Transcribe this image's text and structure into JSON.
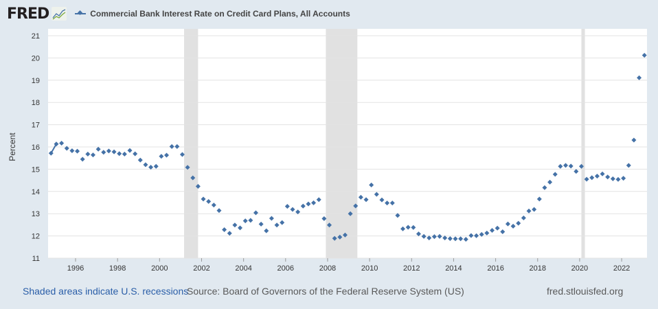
{
  "header": {
    "logo": "FRED",
    "title": "Commercial Bank Interest Rate on Credit Card Plans, All Accounts"
  },
  "footer": {
    "recession_note": "Shaded areas indicate U.S. recessions",
    "source": "Source: Board of Governors of the Federal Reserve System (US)",
    "site": "fred.stlouisfed.org"
  },
  "colors": {
    "series": "#4572a7",
    "recession": "#e1e1e1",
    "background": "#e1e9f0"
  },
  "chart_data": {
    "type": "scatter",
    "title": "Commercial Bank Interest Rate on Credit Card Plans, All Accounts",
    "xlabel": "",
    "ylabel": "Percent",
    "ylim": [
      11,
      21
    ],
    "yticks": [
      "11",
      "12",
      "13",
      "14",
      "15",
      "16",
      "17",
      "18",
      "19",
      "20",
      "21"
    ],
    "xticks": [
      "1996",
      "1998",
      "2000",
      "2002",
      "2004",
      "2006",
      "2008",
      "2010",
      "2012",
      "2014",
      "2016",
      "2018",
      "2020",
      "2022"
    ],
    "grid": true,
    "legend": "top-left",
    "recessions": [
      [
        "2001-03",
        "2001-11"
      ],
      [
        "2007-12",
        "2009-06"
      ],
      [
        "2020-02",
        "2020-04"
      ]
    ],
    "x": [
      "1994-11",
      "1995-02",
      "1995-05",
      "1995-08",
      "1995-11",
      "1996-02",
      "1996-05",
      "1996-08",
      "1996-11",
      "1997-02",
      "1997-05",
      "1997-08",
      "1997-11",
      "1998-02",
      "1998-05",
      "1998-08",
      "1998-11",
      "1999-02",
      "1999-05",
      "1999-08",
      "1999-11",
      "2000-02",
      "2000-05",
      "2000-08",
      "2000-11",
      "2001-02",
      "2001-05",
      "2001-08",
      "2001-11",
      "2002-02",
      "2002-05",
      "2002-08",
      "2002-11",
      "2003-02",
      "2003-05",
      "2003-08",
      "2003-11",
      "2004-02",
      "2004-05",
      "2004-08",
      "2004-11",
      "2005-02",
      "2005-05",
      "2005-08",
      "2005-11",
      "2006-02",
      "2006-05",
      "2006-08",
      "2006-11",
      "2007-02",
      "2007-05",
      "2007-08",
      "2007-11",
      "2008-02",
      "2008-05",
      "2008-08",
      "2008-11",
      "2009-02",
      "2009-05",
      "2009-08",
      "2009-11",
      "2010-02",
      "2010-05",
      "2010-08",
      "2010-11",
      "2011-02",
      "2011-05",
      "2011-08",
      "2011-11",
      "2012-02",
      "2012-05",
      "2012-08",
      "2012-11",
      "2013-02",
      "2013-05",
      "2013-08",
      "2013-11",
      "2014-02",
      "2014-05",
      "2014-08",
      "2014-11",
      "2015-02",
      "2015-05",
      "2015-08",
      "2015-11",
      "2016-02",
      "2016-05",
      "2016-08",
      "2016-11",
      "2017-02",
      "2017-05",
      "2017-08",
      "2017-11",
      "2018-02",
      "2018-05",
      "2018-08",
      "2018-11",
      "2019-02",
      "2019-05",
      "2019-08",
      "2019-11",
      "2020-02",
      "2020-05",
      "2020-08",
      "2020-11",
      "2021-02",
      "2021-05",
      "2021-08",
      "2021-11",
      "2022-02",
      "2022-05",
      "2022-08",
      "2022-11",
      "2023-02"
    ],
    "series": [
      {
        "name": "Commercial Bank Interest Rate on Credit Card Plans, All Accounts",
        "values": [
          15.72,
          16.13,
          16.17,
          15.94,
          15.83,
          15.81,
          15.45,
          15.68,
          15.64,
          15.9,
          15.76,
          15.82,
          15.78,
          15.7,
          15.68,
          15.84,
          15.69,
          15.41,
          15.2,
          15.09,
          15.13,
          15.58,
          15.63,
          16.02,
          16.02,
          15.66,
          15.08,
          14.61,
          14.23,
          13.66,
          13.55,
          13.39,
          13.14,
          12.28,
          12.12,
          12.49,
          12.36,
          12.68,
          12.7,
          13.04,
          12.53,
          12.23,
          12.79,
          12.49,
          12.6,
          13.33,
          13.19,
          13.08,
          13.34,
          13.44,
          13.49,
          13.63,
          12.78,
          12.49,
          11.89,
          11.95,
          12.04,
          13.0,
          13.35,
          13.74,
          13.63,
          14.29,
          13.87,
          13.62,
          13.48,
          13.48,
          12.92,
          12.32,
          12.39,
          12.38,
          12.09,
          11.98,
          11.91,
          11.97,
          11.98,
          11.91,
          11.88,
          11.87,
          11.87,
          11.85,
          12.02,
          12.01,
          12.07,
          12.13,
          12.25,
          12.35,
          12.19,
          12.54,
          12.44,
          12.57,
          12.81,
          13.12,
          13.19,
          13.66,
          14.17,
          14.42,
          14.77,
          15.13,
          15.17,
          15.14,
          14.9,
          15.13,
          14.55,
          14.62,
          14.69,
          14.79,
          14.65,
          14.57,
          14.54,
          14.59,
          15.17,
          16.31,
          19.11,
          20.12
        ]
      }
    ]
  }
}
